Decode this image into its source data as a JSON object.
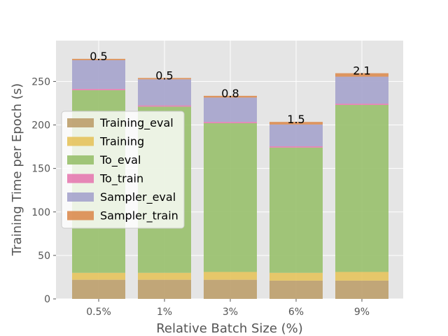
{
  "chart_data": {
    "type": "bar",
    "stacked": true,
    "xlabel": "Relative Batch Size (%)",
    "ylabel": "Training Time per Epoch (s)",
    "ylim": [
      0,
      297
    ],
    "yticks": [
      0,
      50,
      100,
      150,
      200,
      250
    ],
    "categories": [
      "0.5%",
      "1%",
      "3%",
      "6%",
      "9%"
    ],
    "series": [
      {
        "name": "Training_eval",
        "color": "#bd9e6c",
        "values": [
          22,
          22,
          22,
          21,
          21
        ]
      },
      {
        "name": "Training",
        "color": "#e5c35c",
        "values": [
          8,
          8,
          9,
          9,
          10
        ]
      },
      {
        "name": "To_eval",
        "color": "#98c06b",
        "values": [
          210,
          191,
          171,
          144,
          192
        ]
      },
      {
        "name": "To_train",
        "color": "#e57ab0",
        "values": [
          1.5,
          1.5,
          1.5,
          1.5,
          1.5
        ]
      },
      {
        "name": "Sampler_eval",
        "color": "#a5a3cc",
        "values": [
          33,
          30,
          28,
          25,
          31
        ]
      },
      {
        "name": "Sampler_train",
        "color": "#db8c50",
        "values": [
          1.5,
          1.5,
          2,
          3,
          4
        ]
      }
    ],
    "bar_labels": [
      "0.5",
      "0.5",
      "0.8",
      "1.5",
      "2.1"
    ],
    "grid": true,
    "legend_position": "center-left"
  }
}
